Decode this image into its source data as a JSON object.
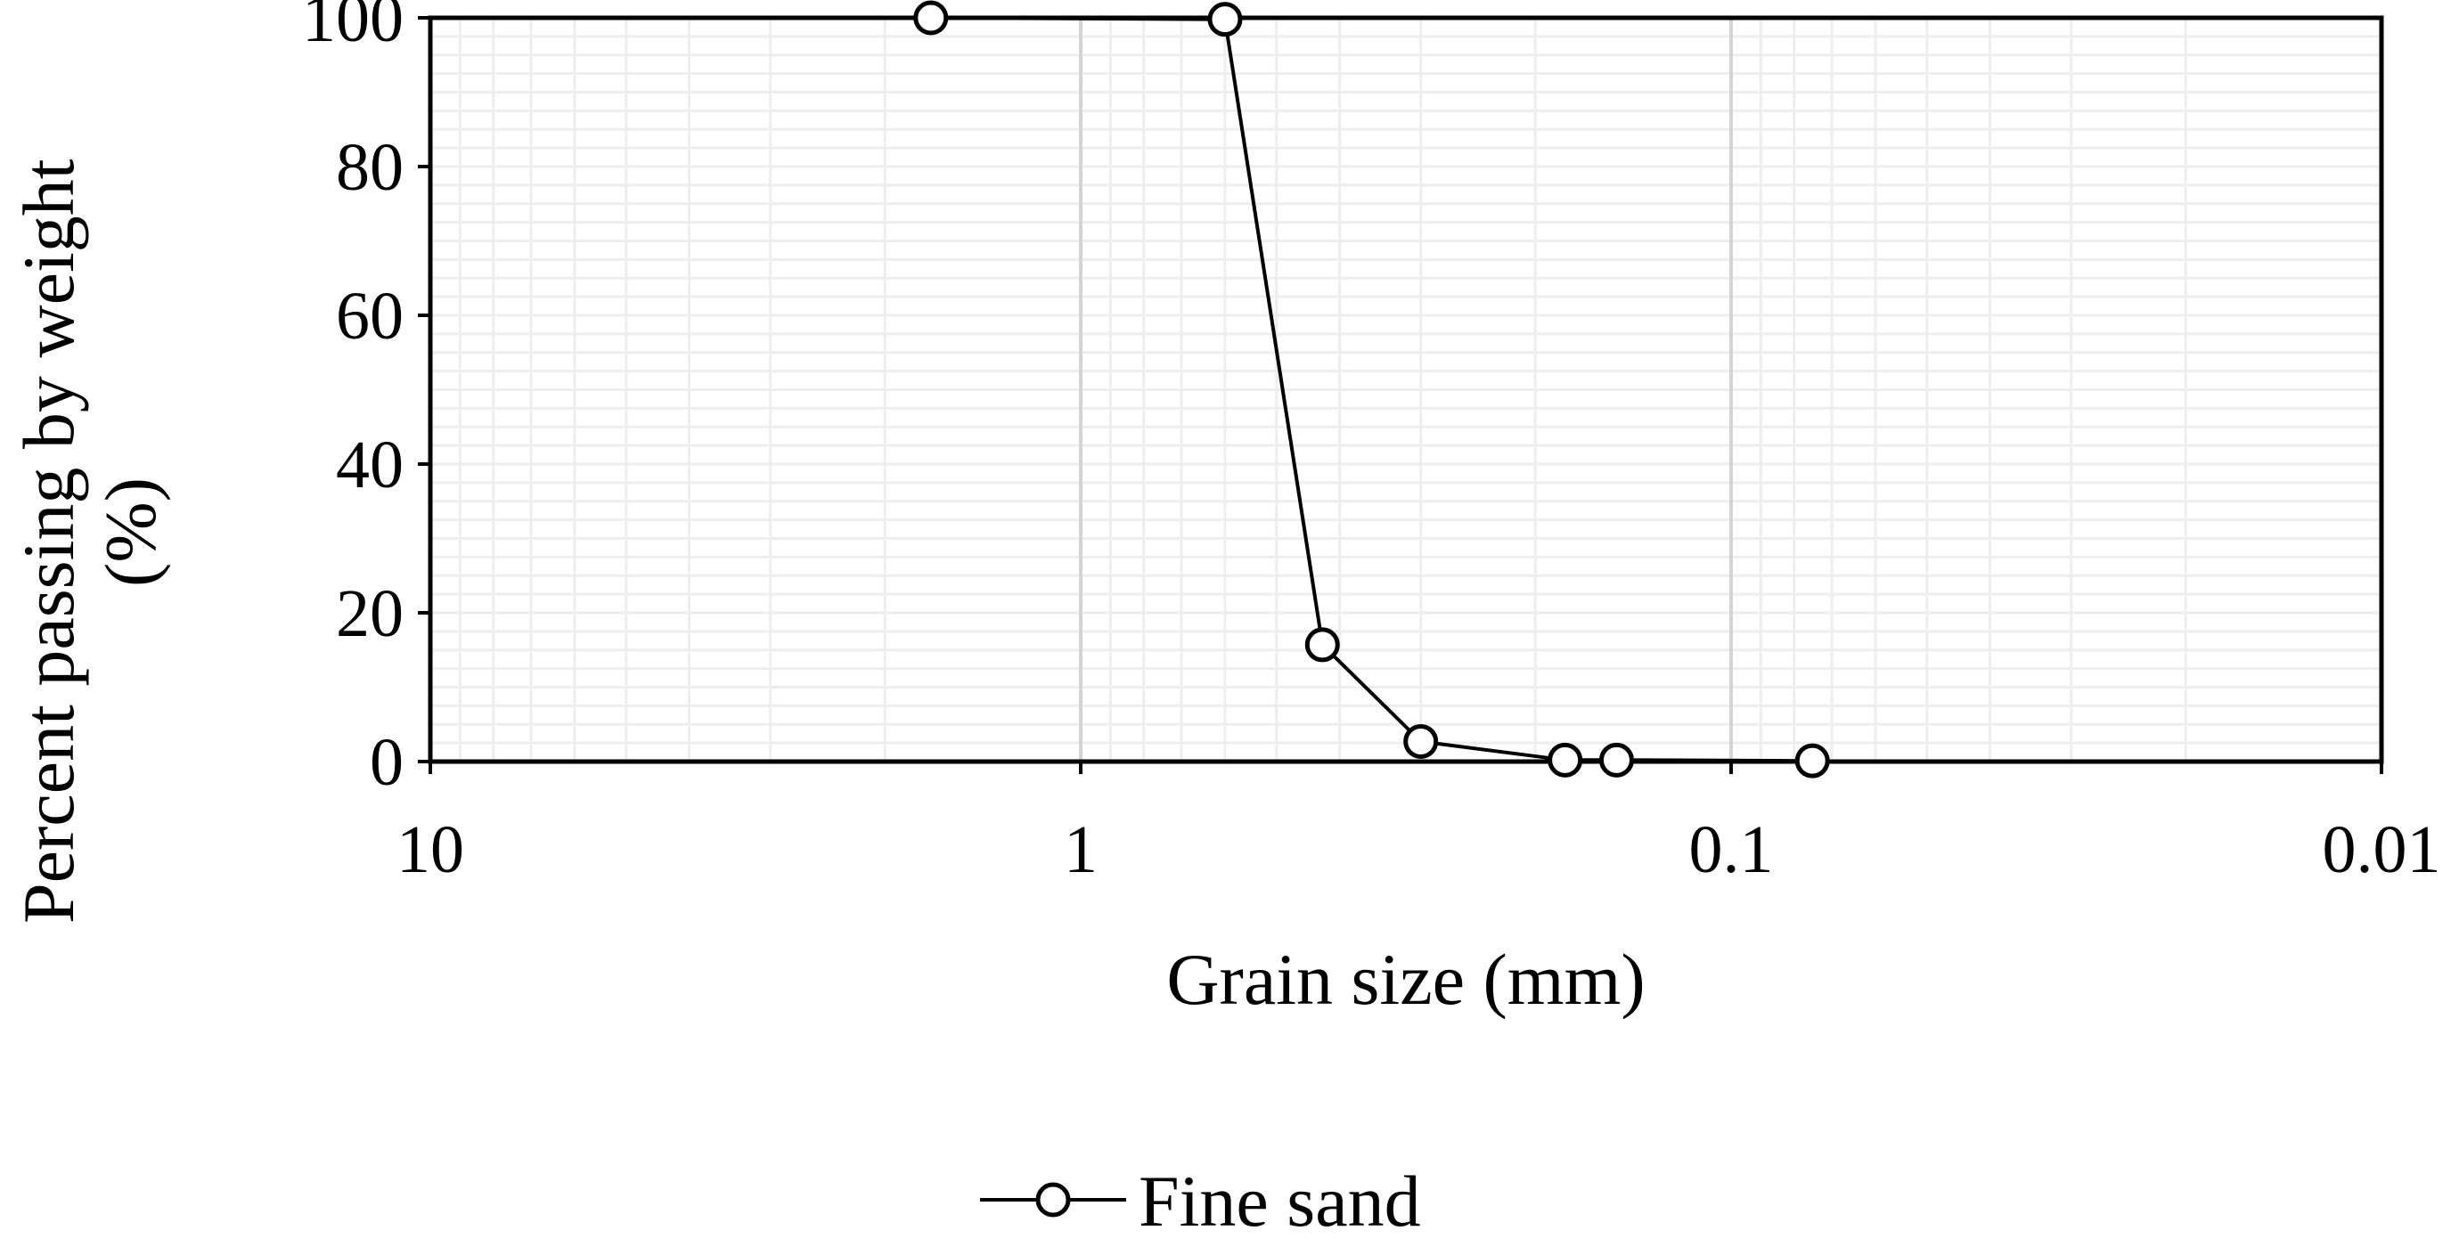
{
  "chart_data": {
    "type": "scatter",
    "xlabel": "Grain size (mm)",
    "ylabel": [
      "Percent passing by weight",
      "(%)"
    ],
    "x_scale": "log",
    "x_reversed": true,
    "xlim": [
      10,
      0.01
    ],
    "ylim": [
      0,
      100
    ],
    "x_ticks": [
      10,
      1,
      0.1,
      0.01
    ],
    "x_tick_labels": [
      "10",
      "1",
      "0.1",
      "0.01"
    ],
    "y_ticks": [
      0,
      20,
      40,
      60,
      80,
      100
    ],
    "y_tick_labels": [
      "0",
      "20",
      "40",
      "60",
      "80",
      "100"
    ],
    "grid": true,
    "legend_position": "bottom",
    "series": [
      {
        "name": "Fine sand",
        "marker": "open-circle",
        "line": true,
        "x": [
          1.7,
          0.6,
          0.425,
          0.3,
          0.18,
          0.15,
          0.075
        ],
        "y": [
          100,
          99.8,
          15.7,
          2.7,
          0.2,
          0.2,
          0.1
        ]
      }
    ],
    "colors": {
      "line": "#000000",
      "grid_major": "#d4d4d4",
      "grid_minor": "#eeeeee",
      "frame": "#000000"
    }
  }
}
